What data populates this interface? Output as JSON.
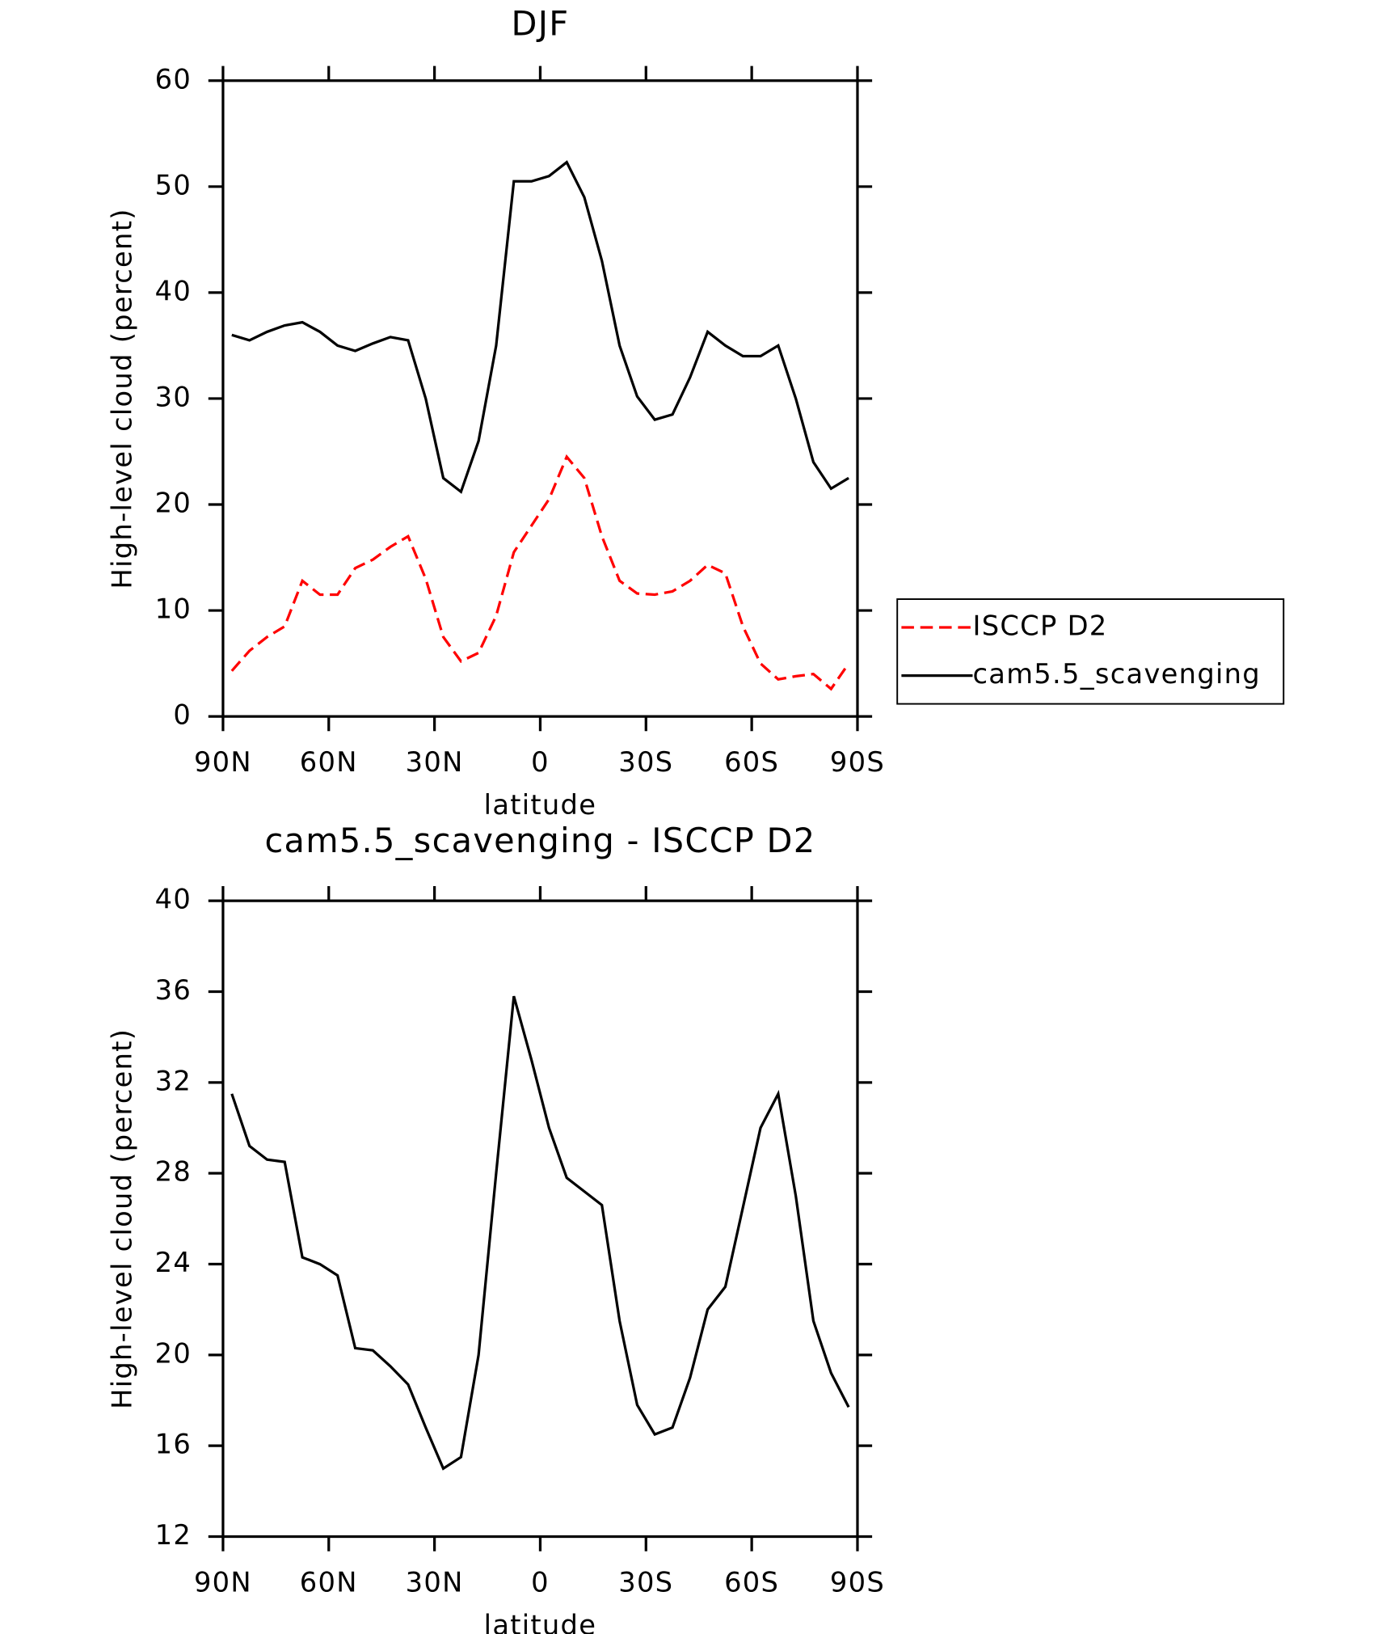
{
  "chart_data": [
    {
      "type": "line",
      "title": "DJF",
      "xlabel": "latitude",
      "ylabel": "High-level cloud (percent)",
      "x": [
        87.5,
        82.5,
        77.5,
        72.5,
        67.5,
        62.5,
        57.5,
        52.5,
        47.5,
        42.5,
        37.5,
        32.5,
        27.5,
        22.5,
        17.5,
        12.5,
        7.5,
        2.5,
        -2.5,
        -7.5,
        -12.5,
        -17.5,
        -22.5,
        -27.5,
        -32.5,
        -37.5,
        -42.5,
        -47.5,
        -52.5,
        -57.5,
        -62.5,
        -67.5,
        -72.5,
        -77.5,
        -82.5,
        -87.5
      ],
      "series": [
        {
          "name": "ISCCP D2",
          "color": "#ff0000",
          "line_style": "dashed",
          "values": [
            4.3,
            6.2,
            7.5,
            8.5,
            12.8,
            11.5,
            11.5,
            14,
            14.8,
            16,
            17,
            13,
            7.5,
            5.2,
            6,
            9.5,
            15.5,
            18,
            20.5,
            24.5,
            22.5,
            17,
            12.8,
            11.6,
            11.5,
            11.8,
            12.8,
            14.3,
            13.5,
            8.5,
            5,
            3.5,
            3.8,
            4,
            2.6,
            5
          ]
        },
        {
          "name": "cam5.5_scavenging",
          "color": "#000000",
          "line_style": "solid",
          "values": [
            36,
            35.5,
            36.3,
            36.9,
            37.2,
            36.3,
            35,
            34.5,
            35.2,
            35.8,
            35.5,
            30,
            22.5,
            21.2,
            26,
            35,
            50.5,
            50.5,
            51,
            52.3,
            49,
            43,
            35,
            30.2,
            28,
            28.5,
            32,
            36.3,
            35,
            34,
            34,
            35,
            30,
            24,
            21.5,
            22.5
          ]
        }
      ],
      "xlim": [
        90,
        -90
      ],
      "xticks": [
        {
          "value": 90,
          "label": "90N"
        },
        {
          "value": 60,
          "label": "60N"
        },
        {
          "value": 30,
          "label": "30N"
        },
        0,
        {
          "value": -30,
          "label": "30S"
        },
        {
          "value": -60,
          "label": "60S"
        },
        {
          "value": -90,
          "label": "90S"
        }
      ],
      "ylim": [
        0,
        60
      ],
      "yticks": [
        0,
        10,
        20,
        30,
        40,
        50,
        60
      ],
      "legend": "right"
    },
    {
      "type": "line",
      "title": "cam5.5_scavenging - ISCCP D2",
      "xlabel": "latitude",
      "ylabel": "High-level cloud (percent)",
      "x": [
        87.5,
        82.5,
        77.5,
        72.5,
        67.5,
        62.5,
        57.5,
        52.5,
        47.5,
        42.5,
        37.5,
        32.5,
        27.5,
        22.5,
        17.5,
        12.5,
        7.5,
        2.5,
        -2.5,
        -7.5,
        -12.5,
        -17.5,
        -22.5,
        -27.5,
        -32.5,
        -37.5,
        -42.5,
        -47.5,
        -52.5,
        -57.5,
        -62.5,
        -67.5,
        -72.5,
        -77.5,
        -82.5,
        -87.5
      ],
      "series": [
        {
          "color": "#000000",
          "line_style": "solid",
          "values": [
            31.5,
            29.2,
            28.6,
            28.5,
            24.3,
            24,
            23.5,
            20.3,
            20.2,
            19.5,
            18.7,
            16.8,
            15,
            15.5,
            20,
            28,
            35.8,
            33,
            30,
            27.8,
            27.2,
            26.6,
            21.5,
            17.8,
            16.5,
            16.8,
            19,
            22,
            23,
            26.5,
            30,
            31.5,
            27,
            21.5,
            19.2,
            17.7
          ]
        }
      ],
      "xlim": [
        90,
        -90
      ],
      "xticks": [
        {
          "value": 90,
          "label": "90N"
        },
        {
          "value": 60,
          "label": "60N"
        },
        {
          "value": 30,
          "label": "30N"
        },
        0,
        {
          "value": -30,
          "label": "30S"
        },
        {
          "value": -60,
          "label": "60S"
        },
        {
          "value": -90,
          "label": "90S"
        }
      ],
      "ylim": [
        12,
        40
      ],
      "yticks": [
        12,
        16,
        20,
        24,
        28,
        32,
        36,
        40
      ]
    }
  ]
}
